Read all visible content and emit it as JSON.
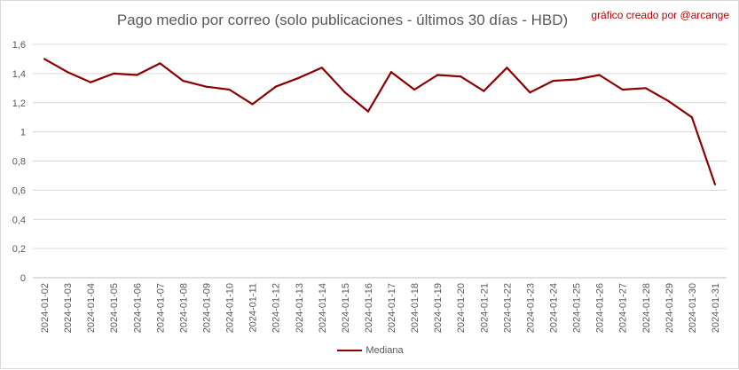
{
  "chart_data": {
    "type": "line",
    "title": "Pago medio por correo (solo publicaciones - últimos 30 días - HBD)",
    "subtitle": "gráfico creado por @arcange",
    "xlabel": "",
    "ylabel": "",
    "ylim": [
      0,
      1.6
    ],
    "yticks": [
      "0",
      "0,2",
      "0,4",
      "0,6",
      "0,8",
      "1",
      "1,2",
      "1,4",
      "1,6"
    ],
    "ytick_values": [
      0,
      0.2,
      0.4,
      0.6,
      0.8,
      1.0,
      1.2,
      1.4,
      1.6
    ],
    "grid": true,
    "legend_position": "bottom",
    "categories": [
      "2024-01-02",
      "2024-01-03",
      "2024-01-04",
      "2024-01-05",
      "2024-01-06",
      "2024-01-07",
      "2024-01-08",
      "2024-01-09",
      "2024-01-10",
      "2024-01-11",
      "2024-01-12",
      "2024-01-13",
      "2024-01-14",
      "2024-01-15",
      "2024-01-16",
      "2024-01-17",
      "2024-01-18",
      "2024-01-19",
      "2024-01-20",
      "2024-01-21",
      "2024-01-22",
      "2024-01-23",
      "2024-01-24",
      "2024-01-25",
      "2024-01-26",
      "2024-01-27",
      "2024-01-28",
      "2024-01-29",
      "2024-01-30",
      "2024-01-31"
    ],
    "series": [
      {
        "name": "Mediana",
        "color": "#8b0000",
        "values": [
          1.5,
          1.41,
          1.34,
          1.4,
          1.39,
          1.47,
          1.35,
          1.31,
          1.29,
          1.19,
          1.31,
          1.37,
          1.44,
          1.27,
          1.14,
          1.41,
          1.29,
          1.39,
          1.38,
          1.28,
          1.44,
          1.27,
          1.35,
          1.36,
          1.39,
          1.29,
          1.3,
          1.21,
          1.1,
          0.64
        ]
      }
    ]
  }
}
